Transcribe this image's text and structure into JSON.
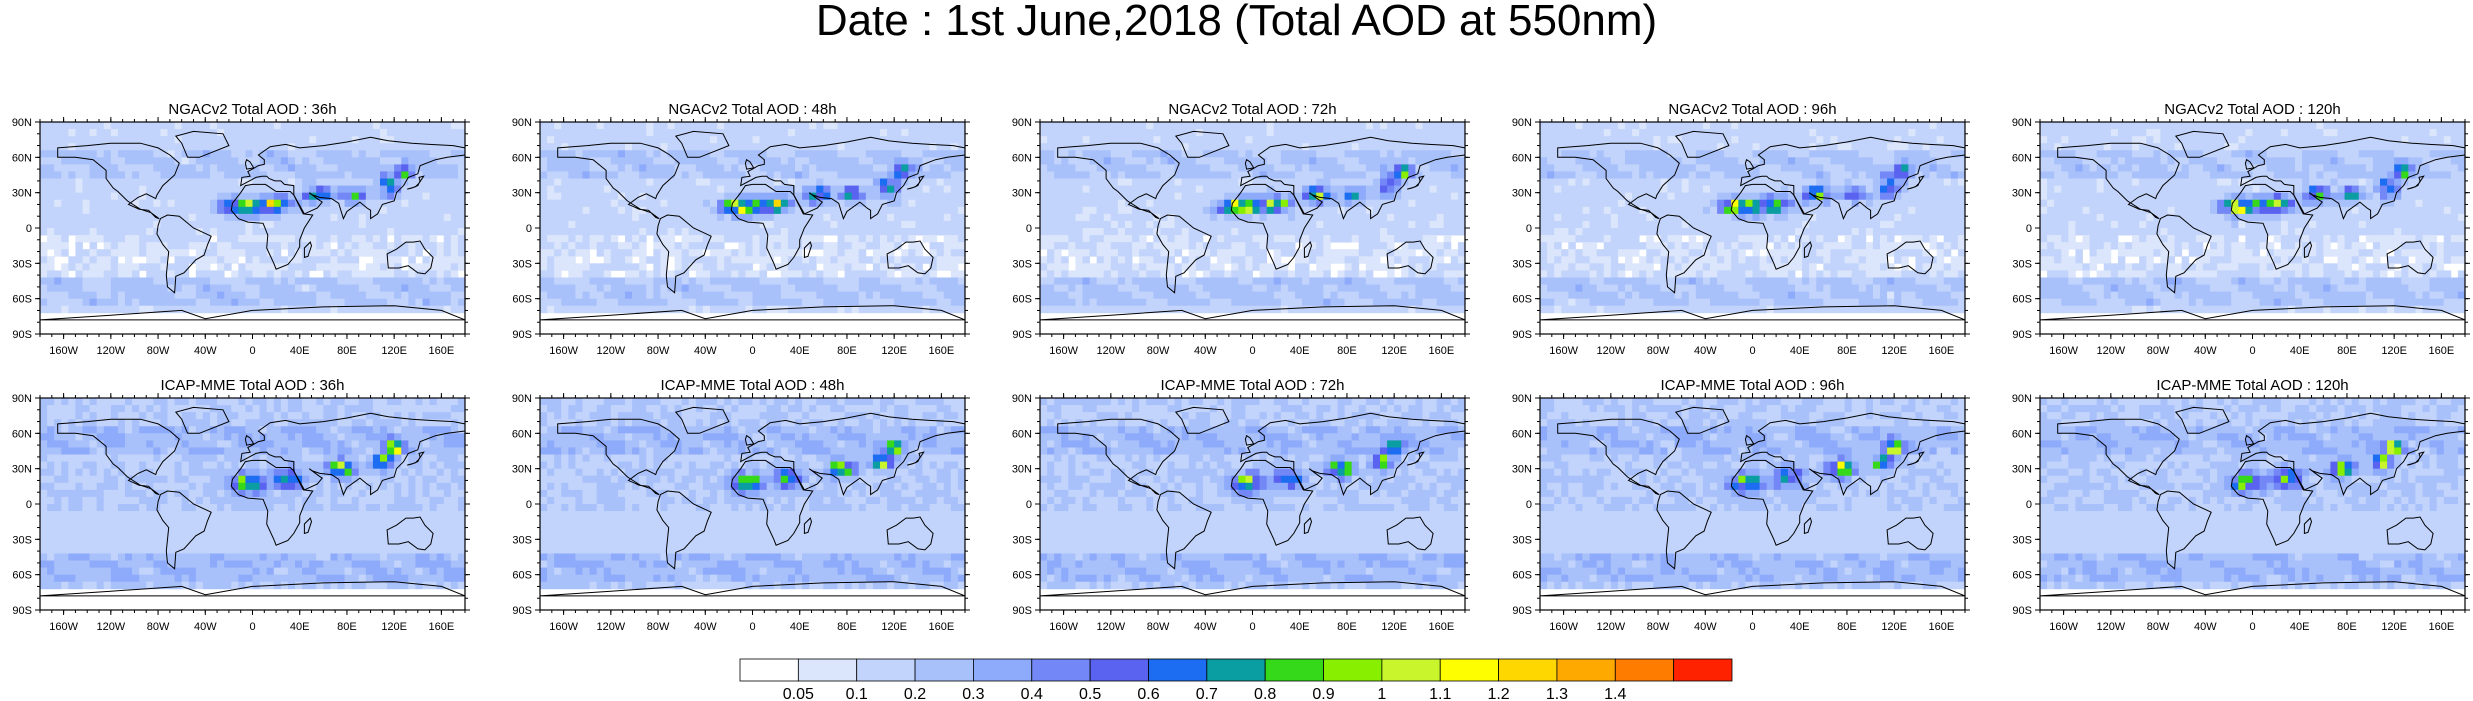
{
  "title": "Date : 1st June,2018 (Total AOD at 550nm)",
  "panels": [
    {
      "title": "NGACv2 Total AOD : 36h",
      "model": "NGACv2",
      "lead": "36h"
    },
    {
      "title": "NGACv2 Total AOD : 48h",
      "model": "NGACv2",
      "lead": "48h"
    },
    {
      "title": "NGACv2 Total AOD : 72h",
      "model": "NGACv2",
      "lead": "72h"
    },
    {
      "title": "NGACv2 Total AOD : 96h",
      "model": "NGACv2",
      "lead": "96h"
    },
    {
      "title": "NGACv2 Total AOD : 120h",
      "model": "NGACv2",
      "lead": "120h"
    },
    {
      "title": "ICAP-MME Total AOD : 36h",
      "model": "ICAP-MME",
      "lead": "36h"
    },
    {
      "title": "ICAP-MME Total AOD : 48h",
      "model": "ICAP-MME",
      "lead": "48h"
    },
    {
      "title": "ICAP-MME Total AOD : 72h",
      "model": "ICAP-MME",
      "lead": "72h"
    },
    {
      "title": "ICAP-MME Total AOD : 96h",
      "model": "ICAP-MME",
      "lead": "96h"
    },
    {
      "title": "ICAP-MME Total AOD : 120h",
      "model": "ICAP-MME",
      "lead": "120h"
    }
  ],
  "lat_labels": [
    "90N",
    "60N",
    "30N",
    "0",
    "30S",
    "60S",
    "90S"
  ],
  "lon_labels": [
    "160W",
    "120W",
    "80W",
    "40W",
    "0",
    "40E",
    "80E",
    "120E",
    "160E"
  ],
  "colorbar": {
    "labels": [
      "0.05",
      "0.1",
      "0.2",
      "0.3",
      "0.4",
      "0.5",
      "0.6",
      "0.7",
      "0.8",
      "0.9",
      "1",
      "1.1",
      "1.2",
      "1.3",
      "1.4"
    ],
    "colors": [
      "#ffffff",
      "#dbe5fb",
      "#c2d4fb",
      "#a9c1fb",
      "#8eaafa",
      "#7387f6",
      "#5a62f0",
      "#1c6df2",
      "#0a9da2",
      "#36d81a",
      "#89ef00",
      "#c8f52c",
      "#fefe00",
      "#fed600",
      "#fea900",
      "#fe7d00",
      "#fe2200"
    ]
  }
}
